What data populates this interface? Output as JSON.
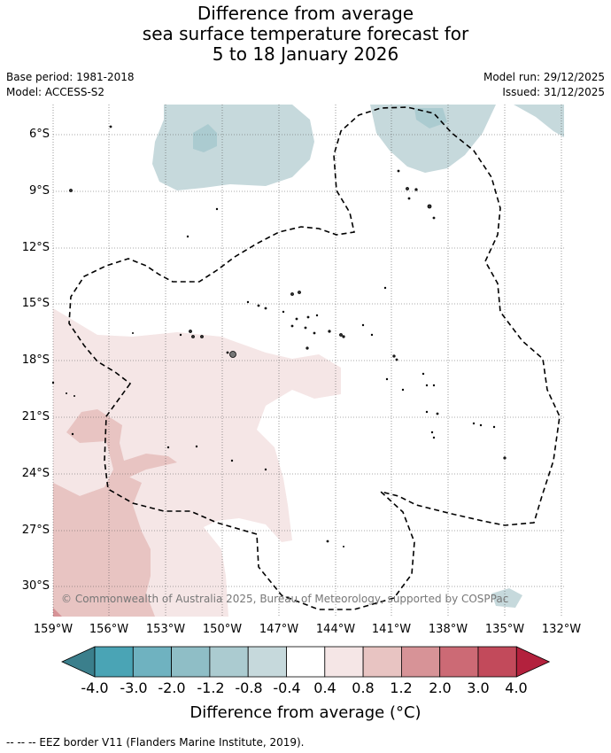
{
  "title": {
    "line1": "Difference from average",
    "line2": "sea surface temperature forecast for",
    "line3": "5 to 18 January 2026"
  },
  "meta": {
    "base_period": "Base period: 1981-2018",
    "model": "Model: ACCESS-S2",
    "model_run": "Model run: 29/12/2025",
    "issued": "Issued: 31/12/2025"
  },
  "map": {
    "lat_labels": [
      "6°S",
      "9°S",
      "12°S",
      "15°S",
      "18°S",
      "21°S",
      "24°S",
      "27°S",
      "30°S"
    ],
    "lon_labels": [
      "159°W",
      "156°W",
      "153°W",
      "150°W",
      "147°W",
      "144°W",
      "141°W",
      "138°W",
      "135°W",
      "132°W"
    ],
    "copyright": "© Commonwealth of Australia 2025, Bureau of Meteorology, supported by COSPPac"
  },
  "colorbar": {
    "ticks": [
      "-4.0",
      "-3.0",
      "-2.0",
      "-1.2",
      "-0.8",
      "-0.4",
      "0.4",
      "0.8",
      "1.2",
      "2.0",
      "3.0",
      "4.0"
    ],
    "colors": [
      "#3b7f8c",
      "#4aa4b5",
      "#6fb2c0",
      "#8fbec6",
      "#abcbd0",
      "#c6d9dc",
      "#ffffff",
      "#f5e6e6",
      "#e8c4c2",
      "#d79397",
      "#cc6a75",
      "#c24a5b",
      "#b3213d"
    ],
    "label": "Difference from average (°C)"
  },
  "footer": "--  --  -- EEZ border V11 (Flanders Marine Institute, 2019)."
}
